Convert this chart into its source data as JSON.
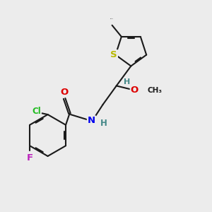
{
  "bg_color": "#ececec",
  "bond_color": "#1a1a1a",
  "bond_width": 1.5,
  "dbo": 0.055,
  "atom_colors": {
    "S": "#b8b800",
    "O": "#dd0000",
    "N": "#0000ee",
    "Cl": "#22bb22",
    "F": "#bb22bb",
    "H": "#448888",
    "C": "#1a1a1a"
  },
  "font_size": 8.5,
  "fig_bg": "#ececec"
}
